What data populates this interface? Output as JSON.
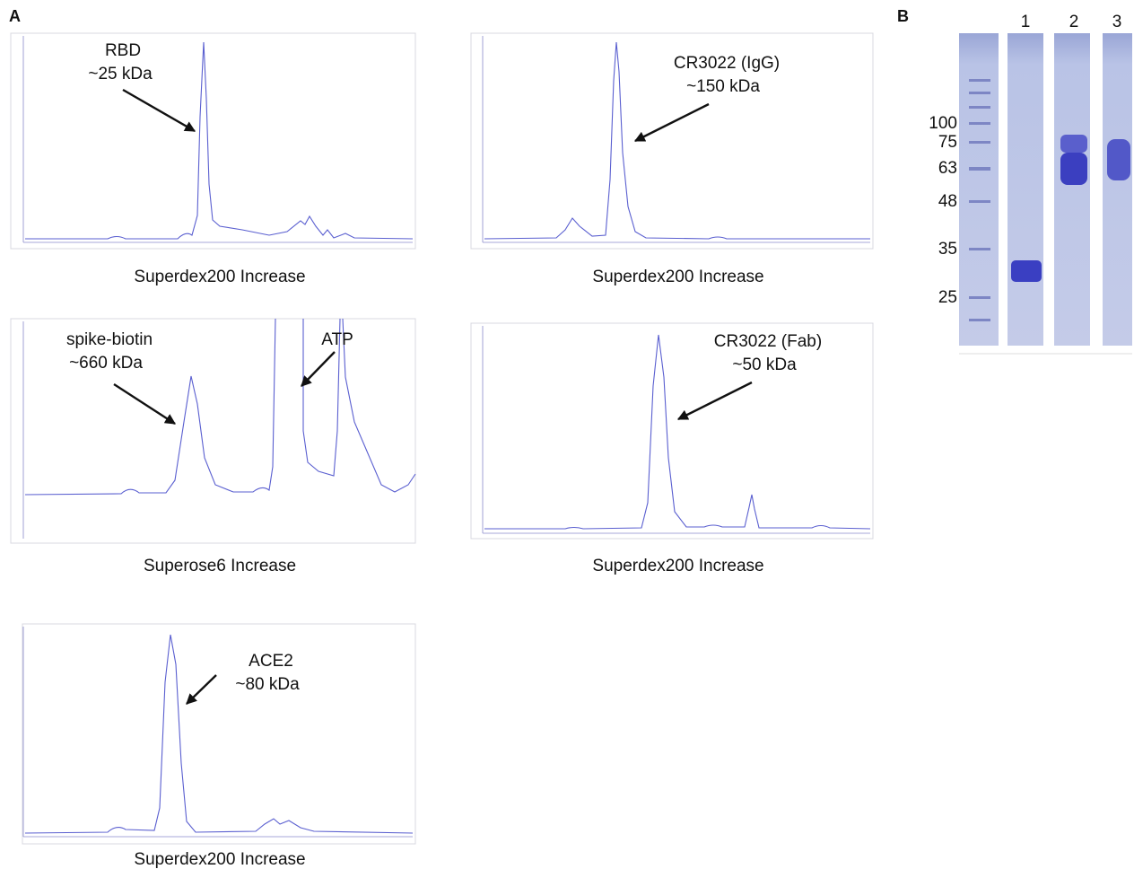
{
  "panel_a": {
    "label": "A",
    "chromatograms": [
      {
        "annotations": [
          [
            "RBD",
            "~25 kDa"
          ]
        ],
        "column": "Superdex200 Increase"
      },
      {
        "annotations": [
          [
            "CR3022 (IgG)",
            "~150 kDa"
          ]
        ],
        "column": "Superdex200 Increase"
      },
      {
        "annotations": [
          [
            "spike-biotin",
            "~660 kDa"
          ],
          [
            "ATP"
          ]
        ],
        "column": "Superose6 Increase"
      },
      {
        "annotations": [
          [
            "CR3022 (Fab)",
            "~50 kDa"
          ]
        ],
        "column": "Superdex200 Increase"
      },
      {
        "annotations": [
          [
            "ACE2",
            "~80 kDa"
          ]
        ],
        "column": "Superdex200 Increase"
      }
    ]
  },
  "panel_b": {
    "label": "B",
    "lanes": [
      "1",
      "2",
      "3"
    ],
    "markers": [
      "100",
      "75",
      "63",
      "48",
      "35",
      "25"
    ]
  }
}
